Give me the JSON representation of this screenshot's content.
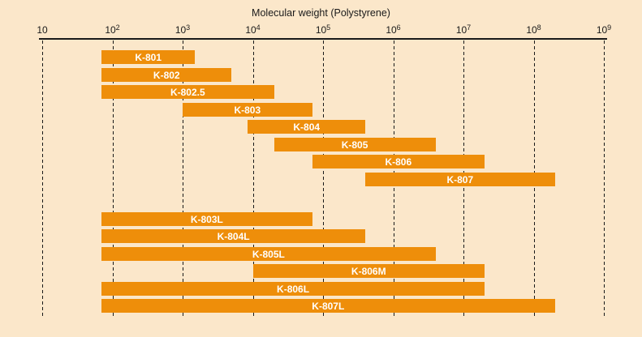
{
  "chart_data": {
    "type": "bar",
    "title": "Molecular weight (Polystyrene)",
    "orientation": "horizontal-range-bars",
    "axis": {
      "scale": "log10",
      "position": "top",
      "range_min": 10,
      "range_max": 1000000000,
      "grid": "dashed-vertical",
      "ticks": [
        {
          "base": "10",
          "sup": "",
          "exp": 1
        },
        {
          "base": "10",
          "sup": "2",
          "exp": 2
        },
        {
          "base": "10",
          "sup": "3",
          "exp": 3
        },
        {
          "base": "10",
          "sup": "4",
          "exp": 4
        },
        {
          "base": "10",
          "sup": "5",
          "exp": 5
        },
        {
          "base": "10",
          "sup": "6",
          "exp": 6
        },
        {
          "base": "10",
          "sup": "7",
          "exp": 7
        },
        {
          "base": "10",
          "sup": "8",
          "exp": 8
        },
        {
          "base": "10",
          "sup": "9",
          "exp": 9
        }
      ]
    },
    "bars_top": [
      {
        "label": "K-801",
        "min": 70,
        "max": 1500
      },
      {
        "label": "K-802",
        "min": 70,
        "max": 5000
      },
      {
        "label": "K-802.5",
        "min": 70,
        "max": 20000
      },
      {
        "label": "K-803",
        "min": 1000,
        "max": 70000
      },
      {
        "label": "K-804",
        "min": 8500,
        "max": 400000
      },
      {
        "label": "K-805",
        "min": 20000,
        "max": 4000000
      },
      {
        "label": "K-806",
        "min": 70000,
        "max": 20000000
      },
      {
        "label": "K-807",
        "min": 400000,
        "max": 200000000
      }
    ],
    "bars_bottom": [
      {
        "label": "K-803L",
        "min": 70,
        "max": 70000
      },
      {
        "label": "K-804L",
        "min": 70,
        "max": 400000
      },
      {
        "label": "K-805L",
        "min": 70,
        "max": 4000000
      },
      {
        "label": "K-806M",
        "min": 10000,
        "max": 20000000
      },
      {
        "label": "K-806L",
        "min": 70,
        "max": 20000000
      },
      {
        "label": "K-807L",
        "min": 70,
        "max": 200000000
      }
    ]
  },
  "colors": {
    "background": "#FBE7CA",
    "bar": "#EE8E0A",
    "bar_label": "#FFFFFF",
    "ink": "#1A1A1A"
  }
}
